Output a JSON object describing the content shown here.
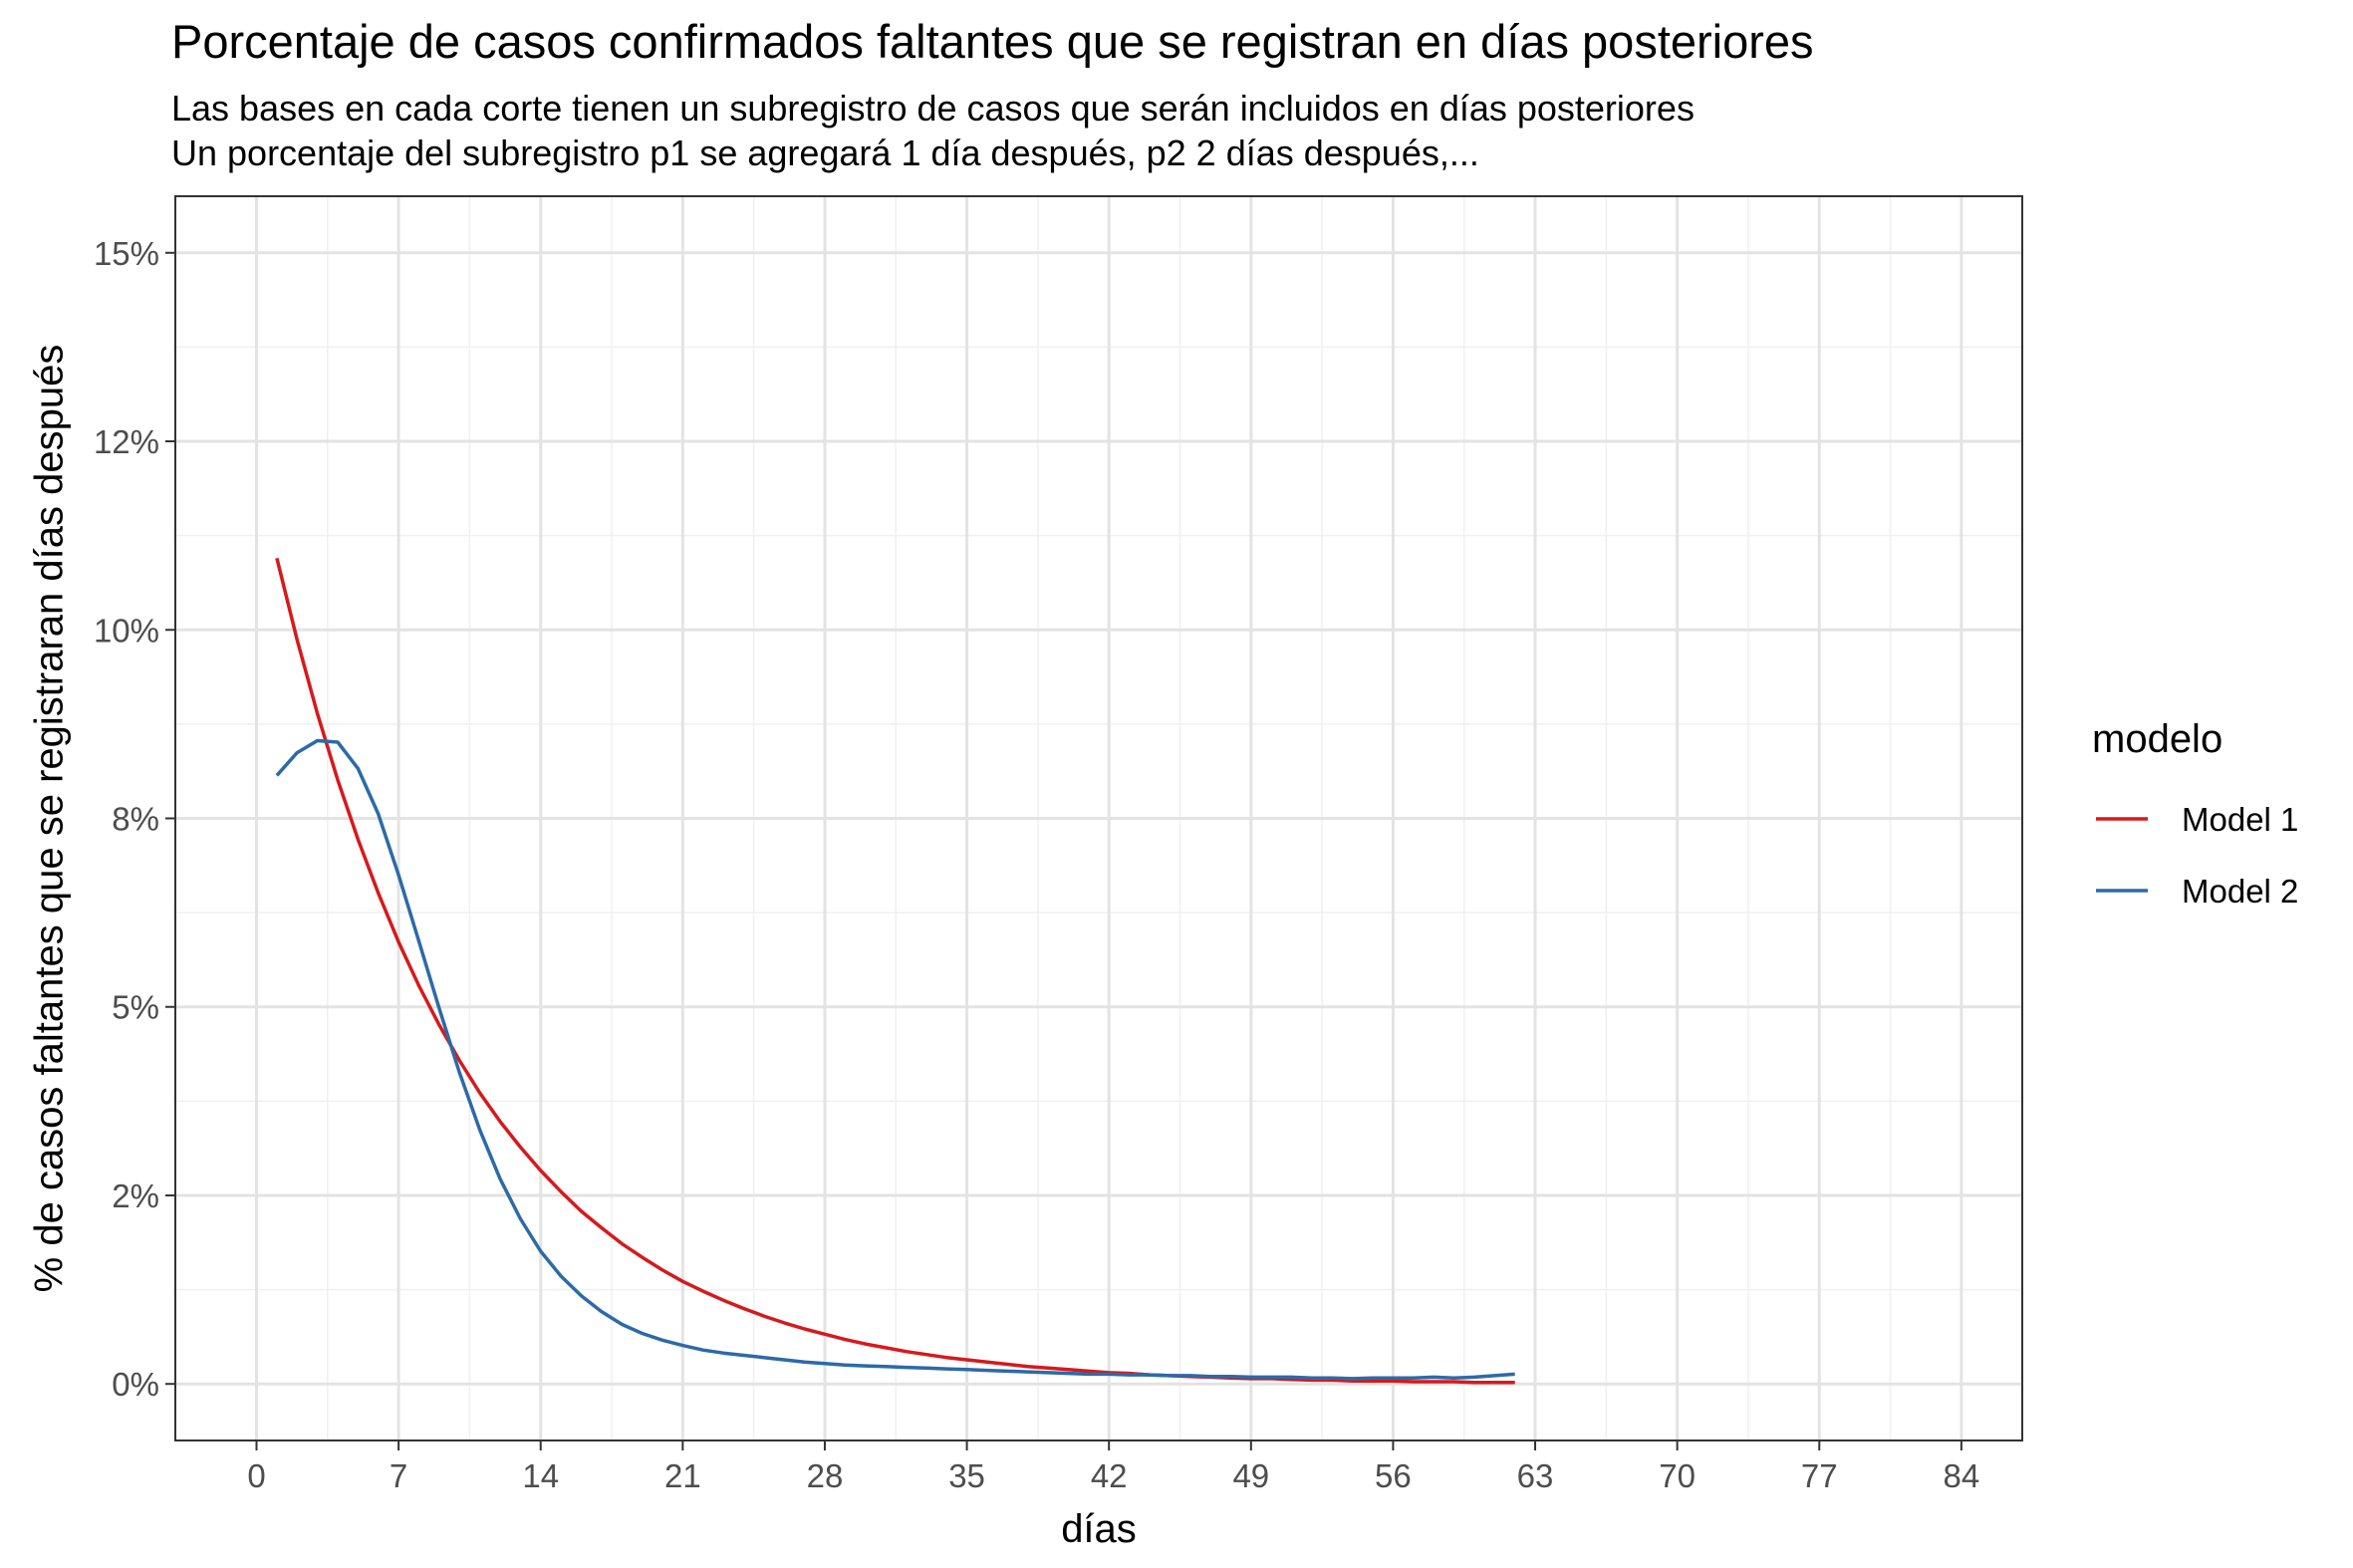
{
  "chart_data": {
    "type": "line",
    "title": "Porcentaje de casos confirmados faltantes que se registran en días posteriores",
    "subtitle": [
      "Las bases en cada corte tienen un subregistro de casos que serán incluidos en días posteriores",
      "Un porcentaje del subregistro p1 se agregará 1 día después, p2 2 días después,..."
    ],
    "xlabel": "días",
    "ylabel": "% de casos faltantes que se registraran días después",
    "xlim": [
      -4,
      87
    ],
    "ylim": [
      -0.0075,
      0.1575
    ],
    "xticks": [
      0,
      7,
      14,
      21,
      28,
      35,
      42,
      49,
      56,
      63,
      70,
      77,
      84
    ],
    "xtick_labels": [
      "0",
      "7",
      "14",
      "21",
      "28",
      "35",
      "42",
      "49",
      "56",
      "63",
      "70",
      "77",
      "84"
    ],
    "yticks": [
      0,
      0.025,
      0.05,
      0.075,
      0.1,
      0.125,
      0.15
    ],
    "ytick_labels": [
      "0%",
      "2%",
      "5%",
      "8%",
      "10%",
      "12%",
      "15%"
    ],
    "grid": true,
    "legend": {
      "title": "modelo",
      "position": "right"
    },
    "series": [
      {
        "name": "Model 1",
        "color": "#d7191c",
        "x": [
          1,
          2,
          3,
          4,
          5,
          6,
          7,
          8,
          9,
          10,
          11,
          12,
          13,
          14,
          15,
          16,
          17,
          18,
          19,
          20,
          21,
          22,
          23,
          24,
          25,
          26,
          27,
          28,
          29,
          30,
          31,
          32,
          33,
          34,
          35,
          36,
          37,
          38,
          39,
          40,
          41,
          42,
          43,
          44,
          45,
          46,
          47,
          48,
          49,
          50,
          51,
          52,
          53,
          54,
          55,
          56,
          57,
          58,
          59,
          60,
          61,
          62
        ],
        "y": [
          0.1095,
          0.0987,
          0.0889,
          0.0801,
          0.0722,
          0.0651,
          0.0586,
          0.0528,
          0.0476,
          0.0429,
          0.0386,
          0.0348,
          0.0314,
          0.0283,
          0.0255,
          0.0229,
          0.0207,
          0.0186,
          0.0168,
          0.0151,
          0.0136,
          0.0123,
          0.0111,
          0.01,
          0.009,
          0.0081,
          0.0073,
          0.0066,
          0.0059,
          0.0053,
          0.0048,
          0.0043,
          0.0039,
          0.0035,
          0.0032,
          0.0029,
          0.0026,
          0.0023,
          0.0021,
          0.0019,
          0.0017,
          0.0015,
          0.0014,
          0.0012,
          0.0011,
          0.001,
          0.0009,
          0.0008,
          0.0007,
          0.0007,
          0.0006,
          0.0005,
          0.0005,
          0.0004,
          0.0004,
          0.0004,
          0.0003,
          0.0003,
          0.0003,
          0.0002,
          0.0002,
          0.0002
        ]
      },
      {
        "name": "Model 2",
        "color": "#2c6aa8",
        "x": [
          1,
          2,
          3,
          4,
          5,
          6,
          7,
          8,
          9,
          10,
          11,
          12,
          13,
          14,
          15,
          16,
          17,
          18,
          19,
          20,
          21,
          22,
          23,
          24,
          25,
          26,
          27,
          28,
          29,
          30,
          31,
          32,
          33,
          34,
          35,
          36,
          37,
          38,
          39,
          40,
          41,
          42,
          43,
          44,
          45,
          46,
          47,
          48,
          49,
          50,
          51,
          52,
          53,
          54,
          55,
          56,
          57,
          58,
          59,
          60,
          61,
          62
        ],
        "y": [
          0.0807,
          0.0837,
          0.0853,
          0.0851,
          0.0816,
          0.0756,
          0.0675,
          0.0587,
          0.0498,
          0.0413,
          0.0337,
          0.0272,
          0.0219,
          0.0176,
          0.0143,
          0.0117,
          0.0096,
          0.0079,
          0.0067,
          0.0058,
          0.0051,
          0.0045,
          0.0041,
          0.0038,
          0.0035,
          0.0032,
          0.0029,
          0.0027,
          0.0025,
          0.0024,
          0.0023,
          0.0022,
          0.0021,
          0.002,
          0.0019,
          0.0018,
          0.0017,
          0.0016,
          0.0015,
          0.0014,
          0.0013,
          0.0013,
          0.0012,
          0.0012,
          0.0011,
          0.0011,
          0.001,
          0.001,
          0.0009,
          0.0009,
          0.0009,
          0.0008,
          0.0008,
          0.0007,
          0.0008,
          0.0008,
          0.0008,
          0.0009,
          0.0008,
          0.0009,
          0.0011,
          0.0013
        ]
      }
    ]
  }
}
